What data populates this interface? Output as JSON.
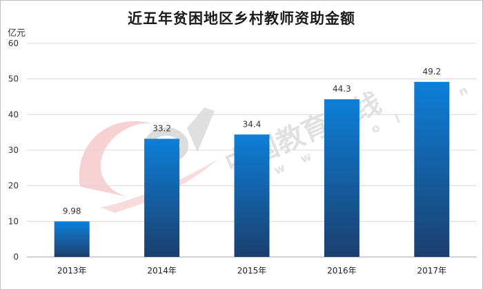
{
  "chart_data": {
    "type": "bar",
    "title": "近五年贫困地区乡村教师资助金额",
    "unit_label": "亿元",
    "xlabel": "",
    "ylabel": "",
    "categories": [
      "2013年",
      "2014年",
      "2015年",
      "2016年",
      "2017年"
    ],
    "values": [
      9.98,
      33.2,
      34.4,
      44.3,
      49.2
    ],
    "data_labels": [
      "9.98",
      "33.2",
      "34.4",
      "44.3",
      "49.2"
    ],
    "ylim": [
      0,
      60
    ],
    "yticks": [
      0,
      10,
      20,
      30,
      40,
      50,
      60
    ],
    "grid": true,
    "legend": "none",
    "colors": {
      "bar_top": "#0d7fd8",
      "bar_bottom": "#1b3f6e",
      "grid": "#d9d9d9",
      "axis": "#a6a6a6"
    }
  },
  "watermark": {
    "text": "中国教育在线",
    "url": "w w w . e o l . c n",
    "colors": {
      "logo": "#e15a63"
    }
  }
}
